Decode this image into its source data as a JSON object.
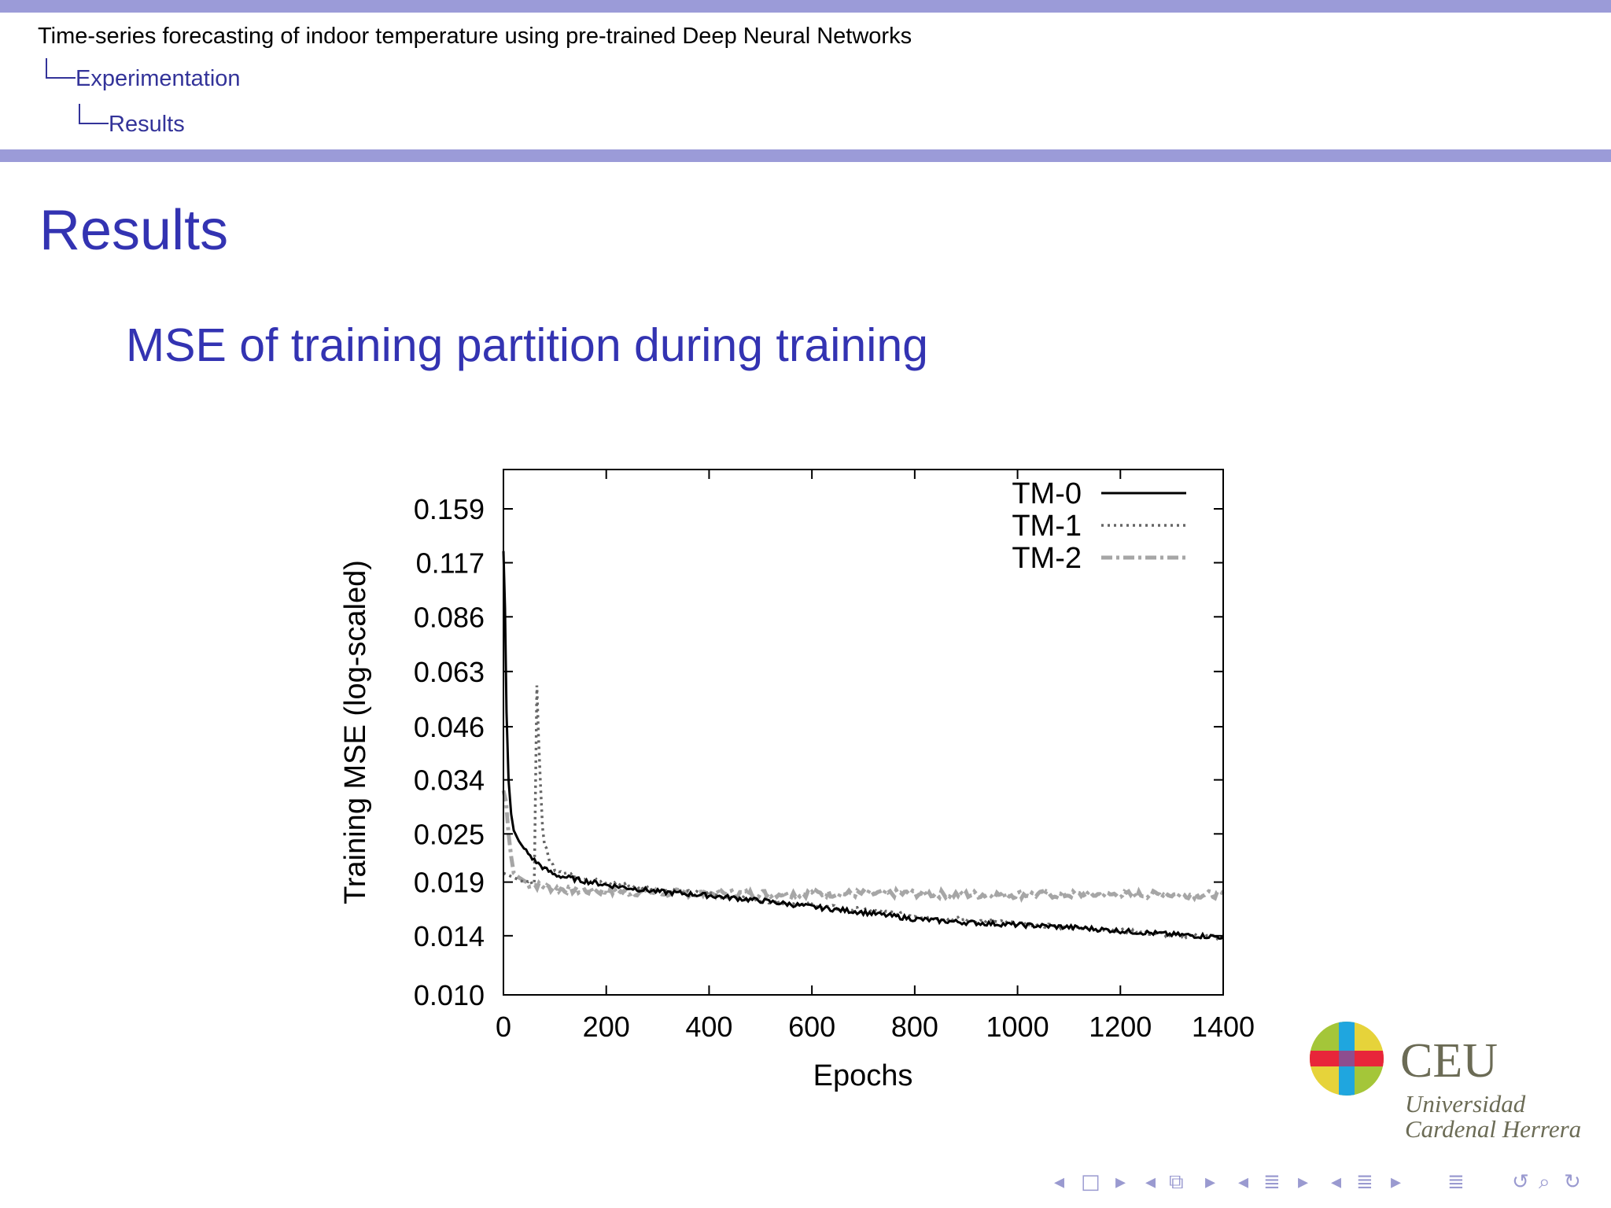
{
  "header": {
    "title": "Time-series forecasting of indoor temperature using pre-trained Deep Neural Networks",
    "section": "Experimentation",
    "subsection": "Results"
  },
  "frame": {
    "title": "Results",
    "subtitle": "MSE of training partition during training"
  },
  "colors": {
    "header_bar": "#9b9bd8",
    "title_color": "#3333b2",
    "crumb_color": "#333399",
    "tm0": "#000000",
    "tm1": "#666666",
    "tm2": "#a6a6a6"
  },
  "chart_data": {
    "type": "line",
    "xlabel": "Epochs",
    "ylabel": "Training MSE (log-scaled)",
    "y_scale": "log",
    "xlim": [
      0,
      1400
    ],
    "ylim": [
      0.01,
      0.159
    ],
    "x_ticks": [
      0,
      200,
      400,
      600,
      800,
      1000,
      1200,
      1400
    ],
    "y_ticks": [
      0.01,
      0.014,
      0.019,
      0.025,
      0.034,
      0.046,
      0.063,
      0.086,
      0.117,
      0.159
    ],
    "y_tick_labels": [
      "0.010",
      "0.014",
      "0.019",
      "0.025",
      "0.034",
      "0.046",
      "0.063",
      "0.086",
      "0.117",
      "0.159"
    ],
    "legend_position": "top-right",
    "grid": false,
    "series": [
      {
        "name": "TM-0",
        "style": "solid",
        "x": [
          0,
          3,
          6,
          10,
          15,
          20,
          30,
          40,
          60,
          80,
          100,
          150,
          200,
          300,
          400,
          500,
          600,
          700,
          800,
          900,
          1000,
          1100,
          1200,
          1300,
          1400
        ],
        "y": [
          0.125,
          0.09,
          0.05,
          0.034,
          0.028,
          0.0255,
          0.024,
          0.023,
          0.0215,
          0.0205,
          0.0198,
          0.0192,
          0.0187,
          0.018,
          0.0176,
          0.0171,
          0.0165,
          0.016,
          0.0154,
          0.0151,
          0.0149,
          0.0147,
          0.0144,
          0.0141,
          0.0139
        ]
      },
      {
        "name": "TM-1",
        "style": "dotted",
        "x": [
          0,
          20,
          40,
          60,
          65,
          68,
          72,
          76,
          80,
          90,
          100,
          150,
          200,
          300,
          400,
          500,
          600,
          700,
          800,
          900,
          1000,
          1100,
          1200,
          1300,
          1400
        ],
        "y": [
          0.02,
          0.0195,
          0.019,
          0.019,
          0.058,
          0.045,
          0.033,
          0.026,
          0.0235,
          0.0215,
          0.0205,
          0.0195,
          0.0189,
          0.0182,
          0.0177,
          0.0172,
          0.0166,
          0.0162,
          0.0157,
          0.0153,
          0.015,
          0.0147,
          0.0144,
          0.0141,
          0.0139
        ]
      },
      {
        "name": "TM-2",
        "style": "dash-dot",
        "x": [
          0,
          5,
          10,
          15,
          20,
          30,
          50,
          100,
          150,
          200,
          300,
          400,
          500,
          600,
          700,
          800,
          900,
          1000,
          1100,
          1200,
          1300,
          1400
        ],
        "y": [
          0.032,
          0.03,
          0.025,
          0.022,
          0.02,
          0.0195,
          0.0188,
          0.0183,
          0.0181,
          0.018,
          0.0179,
          0.0178,
          0.0178,
          0.0178,
          0.0178,
          0.0178,
          0.0177,
          0.0177,
          0.0177,
          0.0177,
          0.0177,
          0.0177
        ]
      }
    ]
  },
  "logo": {
    "abbr": "CEU",
    "line1": "Universidad",
    "line2": "Cardenal Herrera"
  },
  "navigation": {
    "icons": [
      "nav-prev-icon",
      "nav-frame-icon",
      "nav-next-icon",
      "nav-subsection-icon",
      "nav-section-icon",
      "nav-search-icon",
      "nav-back-icon"
    ]
  }
}
